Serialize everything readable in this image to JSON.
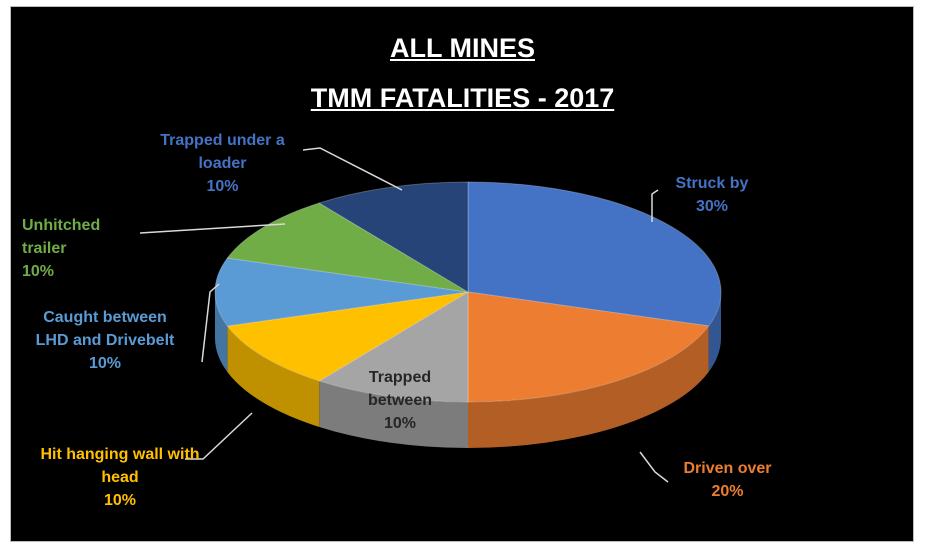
{
  "chart_data": {
    "type": "pie",
    "title": [
      "ALL MINES",
      "TMM FATALITIES - 2017"
    ],
    "categories": [
      "Struck by",
      "Driven over",
      "Trapped between",
      "Hit hanging wall with head",
      "Caught between LHD and Drivebelt",
      "Unhitched trailer",
      "Trapped under a loader"
    ],
    "values": [
      30,
      20,
      10,
      10,
      10,
      10,
      10
    ],
    "value_labels": [
      "30%",
      "20%",
      "10%",
      "10%",
      "10%",
      "10%",
      "10%"
    ],
    "colors": [
      "#4472c4",
      "#ed7d31",
      "#a5a5a5",
      "#ffc000",
      "#5b9bd5",
      "#70ad47",
      "#264478"
    ]
  }
}
